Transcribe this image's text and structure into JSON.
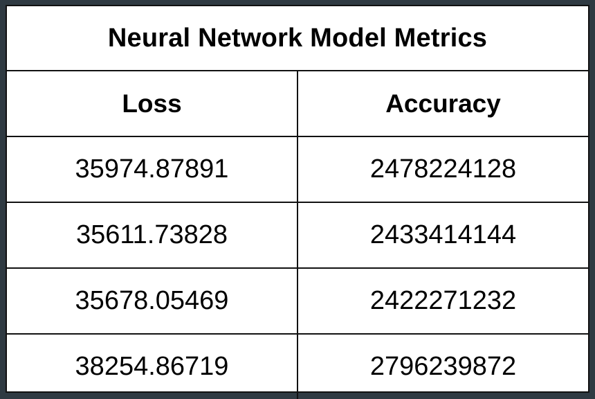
{
  "chart_data": {
    "type": "table",
    "title": "Neural Network Model Metrics",
    "columns": [
      "Loss",
      "Accuracy"
    ],
    "rows": [
      [
        "35974.87891",
        "2478224128"
      ],
      [
        "35611.73828",
        "2433414144"
      ],
      [
        "35678.05469",
        "2422271232"
      ],
      [
        "38254.86719",
        "2796239872"
      ]
    ]
  }
}
